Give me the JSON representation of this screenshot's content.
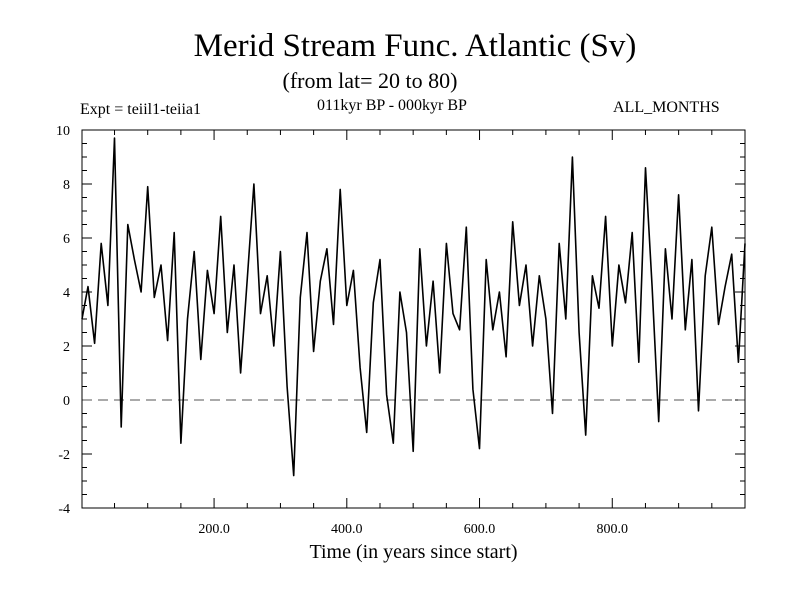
{
  "header": {
    "title": "Merid Stream Func. Atlantic (Sv)",
    "subtitle": "(from lat= 20 to 80)",
    "experiment": "Expt = teiil1-teiia1",
    "period": "011kyr BP - 000kyr BP",
    "months": "ALL_MONTHS"
  },
  "chart_data": {
    "type": "line",
    "title": "Merid Stream Func. Atlantic (Sv)",
    "subtitle": "(from lat= 20 to 80)",
    "xlabel": "Time (in years since start)",
    "ylabel": "",
    "xlim": [
      1,
      1000
    ],
    "ylim": [
      -4,
      10
    ],
    "x_ticks": [
      200,
      400,
      600,
      800
    ],
    "x_tick_labels": [
      "200.0",
      "400.0",
      "600.0",
      "800.0"
    ],
    "y_ticks": [
      -4,
      -2,
      0,
      2,
      4,
      6,
      8,
      10
    ],
    "y_tick_labels": [
      "-4",
      "-2",
      "0",
      "2",
      "4",
      "6",
      "8",
      "10"
    ],
    "reference_line": {
      "y": 0,
      "style": "dashed"
    },
    "grid": false,
    "series": [
      {
        "line_color": "#000000",
        "x": [
          1,
          10,
          20,
          30,
          40,
          50,
          60,
          70,
          80,
          90,
          100,
          110,
          120,
          130,
          140,
          150,
          160,
          170,
          180,
          190,
          200,
          210,
          220,
          230,
          240,
          250,
          260,
          270,
          280,
          290,
          300,
          310,
          320,
          330,
          340,
          350,
          360,
          370,
          380,
          390,
          400,
          410,
          420,
          430,
          440,
          450,
          460,
          470,
          480,
          490,
          500,
          510,
          520,
          530,
          540,
          550,
          560,
          570,
          580,
          590,
          600,
          610,
          620,
          630,
          640,
          650,
          660,
          670,
          680,
          690,
          700,
          710,
          720,
          730,
          740,
          750,
          760,
          770,
          780,
          790,
          800,
          810,
          820,
          830,
          840,
          850,
          860,
          870,
          880,
          890,
          900,
          910,
          920,
          930,
          940,
          950,
          960,
          970,
          980,
          990,
          1000
        ],
        "values": [
          3.0,
          4.2,
          2.1,
          5.8,
          3.5,
          9.7,
          -1.0,
          6.5,
          5.2,
          4.0,
          7.9,
          3.8,
          5.0,
          2.2,
          6.2,
          -1.6,
          3.0,
          5.5,
          1.5,
          4.8,
          3.2,
          6.8,
          2.5,
          5.0,
          1.0,
          4.5,
          8.0,
          3.2,
          4.6,
          2.0,
          5.5,
          0.5,
          -2.8,
          3.8,
          6.2,
          1.8,
          4.4,
          5.6,
          2.8,
          7.8,
          3.5,
          4.8,
          1.2,
          -1.2,
          3.6,
          5.2,
          0.2,
          -1.6,
          4.0,
          2.5,
          -1.9,
          5.6,
          2.0,
          4.4,
          1.0,
          5.8,
          3.2,
          2.6,
          6.4,
          0.4,
          -1.8,
          5.2,
          2.6,
          4.0,
          1.6,
          6.6,
          3.5,
          5.0,
          2.0,
          4.6,
          3.0,
          -0.5,
          5.8,
          3.0,
          9.0,
          2.5,
          -1.3,
          4.6,
          3.4,
          6.8,
          2.0,
          5.0,
          3.6,
          6.2,
          1.4,
          8.6,
          4.2,
          -0.8,
          5.6,
          3.0,
          7.6,
          2.6,
          5.2,
          -0.4,
          4.6,
          6.4,
          2.8,
          4.2,
          5.4,
          1.4,
          5.8
        ]
      }
    ]
  }
}
